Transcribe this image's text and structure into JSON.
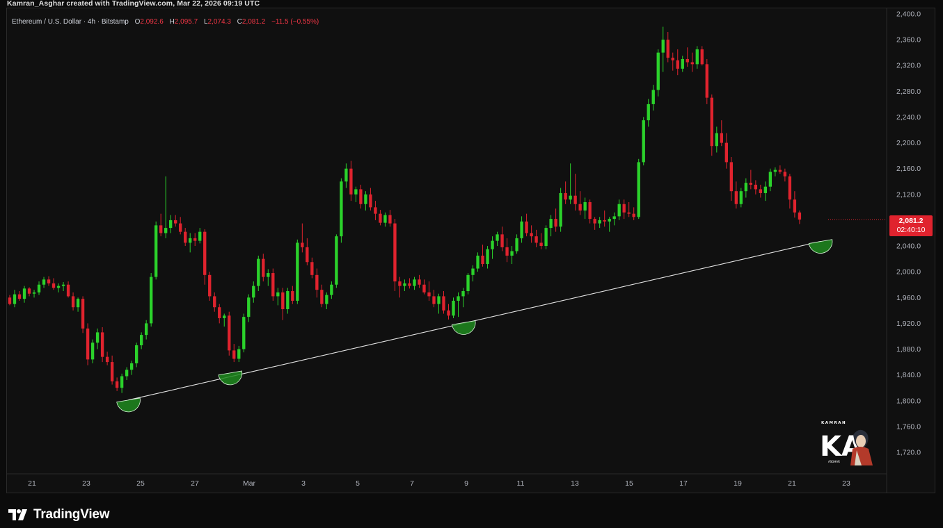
{
  "header": {
    "credit": "Kamran_Asghar created with TradingView.com, Mar 22, 2026 09:19 UTC"
  },
  "legend": {
    "symbol": "Ethereum / U.S. Dollar · 4h · Bitstamp",
    "open_label": "O",
    "open": "2,092.6",
    "high_label": "H",
    "high": "2,095.7",
    "low_label": "L",
    "low": "2,074.3",
    "close_label": "C",
    "close": "2,081.2",
    "change": "−11.5 (−0.55%)"
  },
  "price_tag": {
    "price": "2,081.2",
    "countdown": "02:40:10"
  },
  "footer": {
    "brand": "TradingView",
    "brand_icon": "tradingview-logo-icon"
  },
  "watermark": {
    "text": "KAMRAN",
    "initials": "KA",
    "subtext": "ASGHAR"
  },
  "colors": {
    "up": "#2bd22b",
    "down": "#e0232e",
    "background": "#101010",
    "trendline": "#e6e6e6",
    "highlight": "#1f8a1f"
  },
  "chart_data": {
    "type": "candlestick",
    "title": "",
    "ylim": [
      1690,
      2400
    ],
    "y_ticks": [
      "2,400.0",
      "2,360.0",
      "2,320.0",
      "2,280.0",
      "2,240.0",
      "2,200.0",
      "2,160.0",
      "2,120.0",
      "2,080.0",
      "2,040.0",
      "2,000.0",
      "1,960.0",
      "1,920.0",
      "1,880.0",
      "1,840.0",
      "1,800.0",
      "1,760.0",
      "1,720.0"
    ],
    "x_ticks": [
      "21",
      "23",
      "25",
      "27",
      "Mar",
      "3",
      "5",
      "7",
      "9",
      "11",
      "13",
      "15",
      "17",
      "19",
      "21",
      "23"
    ],
    "x_range_days": [
      -0.2,
      30.6
    ],
    "x_ticks_days": [
      0,
      2,
      4,
      6,
      8,
      10,
      12,
      14,
      16,
      18,
      20,
      22,
      24,
      26,
      28,
      30
    ],
    "trendline": [
      [
        3.55,
        1801
      ],
      [
        29.05,
        2047
      ]
    ],
    "support_touches": [
      [
        3.55,
        1801
      ],
      [
        7.3,
        1843
      ],
      [
        15.9,
        1921
      ],
      [
        29.05,
        2047
      ]
    ],
    "candles": [
      [
        1960,
        1964,
        1948,
        1950
      ],
      [
        1950,
        1972,
        1945,
        1965
      ],
      [
        1965,
        1970,
        1955,
        1958
      ],
      [
        1958,
        1978,
        1952,
        1974
      ],
      [
        1974,
        1976,
        1962,
        1966
      ],
      [
        1966,
        1972,
        1960,
        1968
      ],
      [
        1968,
        1985,
        1964,
        1980
      ],
      [
        1980,
        1992,
        1975,
        1988
      ],
      [
        1988,
        1993,
        1978,
        1982
      ],
      [
        1982,
        1990,
        1972,
        1975
      ],
      [
        1975,
        1982,
        1968,
        1978
      ],
      [
        1978,
        1984,
        1970,
        1980
      ],
      [
        1980,
        1985,
        1960,
        1962
      ],
      [
        1962,
        1968,
        1940,
        1945
      ],
      [
        1945,
        1960,
        1938,
        1958
      ],
      [
        1958,
        1962,
        1905,
        1912
      ],
      [
        1912,
        1920,
        1855,
        1864
      ],
      [
        1864,
        1895,
        1858,
        1890
      ],
      [
        1890,
        1912,
        1880,
        1906
      ],
      [
        1906,
        1914,
        1860,
        1868
      ],
      [
        1868,
        1876,
        1855,
        1860
      ],
      [
        1860,
        1870,
        1825,
        1830
      ],
      [
        1830,
        1836,
        1815,
        1820
      ],
      [
        1820,
        1842,
        1812,
        1838
      ],
      [
        1838,
        1852,
        1832,
        1848
      ],
      [
        1848,
        1862,
        1840,
        1858
      ],
      [
        1858,
        1890,
        1852,
        1886
      ],
      [
        1886,
        1906,
        1880,
        1902
      ],
      [
        1902,
        1925,
        1895,
        1920
      ],
      [
        1920,
        1998,
        1915,
        1992
      ],
      [
        1992,
        2078,
        1988,
        2072
      ],
      [
        2072,
        2090,
        2055,
        2060
      ],
      [
        2060,
        2148,
        2052,
        2068
      ],
      [
        2068,
        2088,
        2060,
        2080
      ],
      [
        2080,
        2088,
        2070,
        2075
      ],
      [
        2075,
        2085,
        2058,
        2062
      ],
      [
        2062,
        2068,
        2040,
        2045
      ],
      [
        2045,
        2060,
        2030,
        2052
      ],
      [
        2052,
        2060,
        2040,
        2048
      ],
      [
        2048,
        2068,
        2044,
        2062
      ],
      [
        2062,
        2066,
        1980,
        1995
      ],
      [
        1995,
        2000,
        1955,
        1962
      ],
      [
        1962,
        1968,
        1938,
        1945
      ],
      [
        1945,
        1950,
        1920,
        1928
      ],
      [
        1928,
        1935,
        1915,
        1932
      ],
      [
        1932,
        1938,
        1870,
        1878
      ],
      [
        1878,
        1888,
        1860,
        1865
      ],
      [
        1865,
        1885,
        1860,
        1880
      ],
      [
        1880,
        1935,
        1875,
        1930
      ],
      [
        1930,
        1965,
        1922,
        1960
      ],
      [
        1960,
        1985,
        1952,
        1978
      ],
      [
        1978,
        2025,
        1970,
        2020
      ],
      [
        2020,
        2028,
        1985,
        1992
      ],
      [
        1992,
        2004,
        1978,
        1998
      ],
      [
        1998,
        2005,
        1955,
        1962
      ],
      [
        1962,
        1975,
        1948,
        1968
      ],
      [
        1968,
        1975,
        1925,
        1942
      ],
      [
        1942,
        1975,
        1935,
        1970
      ],
      [
        1970,
        1978,
        1950,
        1955
      ],
      [
        1955,
        2050,
        1950,
        2045
      ],
      [
        2045,
        2075,
        2030,
        2038
      ],
      [
        2038,
        2052,
        2010,
        2015
      ],
      [
        2015,
        2022,
        1990,
        1995
      ],
      [
        1995,
        2005,
        1960,
        1972
      ],
      [
        1972,
        1980,
        1945,
        1950
      ],
      [
        1950,
        1968,
        1942,
        1964
      ],
      [
        1964,
        1985,
        1958,
        1980
      ],
      [
        1980,
        2058,
        1975,
        2055
      ],
      [
        2055,
        2145,
        2045,
        2140
      ],
      [
        2140,
        2168,
        2130,
        2160
      ],
      [
        2160,
        2172,
        2110,
        2120
      ],
      [
        2120,
        2132,
        2108,
        2128
      ],
      [
        2128,
        2135,
        2098,
        2105
      ],
      [
        2105,
        2125,
        2095,
        2120
      ],
      [
        2120,
        2130,
        2095,
        2100
      ],
      [
        2100,
        2110,
        2080,
        2090
      ],
      [
        2090,
        2096,
        2072,
        2076
      ],
      [
        2076,
        2092,
        2070,
        2088
      ],
      [
        2088,
        2096,
        2070,
        2075
      ],
      [
        2075,
        2082,
        1970,
        1985
      ],
      [
        1985,
        1992,
        1960,
        1978
      ],
      [
        1978,
        1988,
        1970,
        1982
      ],
      [
        1982,
        1990,
        1974,
        1978
      ],
      [
        1978,
        1992,
        1972,
        1988
      ],
      [
        1988,
        1995,
        1975,
        1980
      ],
      [
        1980,
        1988,
        1965,
        1968
      ],
      [
        1968,
        1985,
        1955,
        1962
      ],
      [
        1962,
        1972,
        1945,
        1950
      ],
      [
        1950,
        1966,
        1935,
        1962
      ],
      [
        1962,
        1970,
        1935,
        1940
      ],
      [
        1940,
        1950,
        1926,
        1932
      ],
      [
        1932,
        1960,
        1928,
        1955
      ],
      [
        1955,
        1968,
        1930,
        1962
      ],
      [
        1962,
        1975,
        1945,
        1970
      ],
      [
        1970,
        1998,
        1965,
        1995
      ],
      [
        1995,
        2010,
        1985,
        2005
      ],
      [
        2005,
        2030,
        2000,
        2025
      ],
      [
        2025,
        2042,
        2008,
        2012
      ],
      [
        2012,
        2040,
        2005,
        2035
      ],
      [
        2035,
        2055,
        2020,
        2048
      ],
      [
        2048,
        2062,
        2040,
        2058
      ],
      [
        2058,
        2070,
        2032,
        2038
      ],
      [
        2038,
        2052,
        2015,
        2025
      ],
      [
        2025,
        2040,
        2012,
        2032
      ],
      [
        2032,
        2058,
        2028,
        2052
      ],
      [
        2052,
        2086,
        2045,
        2078
      ],
      [
        2078,
        2090,
        2055,
        2060
      ],
      [
        2060,
        2072,
        2045,
        2055
      ],
      [
        2055,
        2065,
        2038,
        2045
      ],
      [
        2045,
        2060,
        2035,
        2040
      ],
      [
        2040,
        2072,
        2035,
        2068
      ],
      [
        2068,
        2088,
        2055,
        2082
      ],
      [
        2082,
        2098,
        2062,
        2070
      ],
      [
        2070,
        2130,
        2062,
        2122
      ],
      [
        2122,
        2140,
        2105,
        2112
      ],
      [
        2112,
        2168,
        2105,
        2118
      ],
      [
        2118,
        2152,
        2095,
        2105
      ],
      [
        2105,
        2125,
        2088,
        2095
      ],
      [
        2095,
        2115,
        2082,
        2108
      ],
      [
        2108,
        2112,
        2075,
        2082
      ],
      [
        2082,
        2085,
        2065,
        2075
      ],
      [
        2075,
        2085,
        2068,
        2080
      ],
      [
        2080,
        2095,
        2070,
        2078
      ],
      [
        2078,
        2085,
        2062,
        2082
      ],
      [
        2082,
        2092,
        2072,
        2086
      ],
      [
        2086,
        2112,
        2080,
        2105
      ],
      [
        2105,
        2112,
        2082,
        2092
      ],
      [
        2092,
        2108,
        2085,
        2090
      ],
      [
        2090,
        2100,
        2080,
        2085
      ],
      [
        2085,
        2175,
        2082,
        2170
      ],
      [
        2170,
        2240,
        2165,
        2235
      ],
      [
        2235,
        2268,
        2225,
        2260
      ],
      [
        2260,
        2290,
        2250,
        2282
      ],
      [
        2282,
        2345,
        2272,
        2340
      ],
      [
        2340,
        2380,
        2310,
        2360
      ],
      [
        2360,
        2372,
        2325,
        2332
      ],
      [
        2332,
        2340,
        2312,
        2328
      ],
      [
        2328,
        2345,
        2305,
        2315
      ],
      [
        2315,
        2335,
        2310,
        2330
      ],
      [
        2330,
        2348,
        2318,
        2325
      ],
      [
        2325,
        2340,
        2310,
        2322
      ],
      [
        2322,
        2350,
        2315,
        2345
      ],
      [
        2345,
        2350,
        2320,
        2322
      ],
      [
        2322,
        2330,
        2260,
        2270
      ],
      [
        2270,
        2275,
        2180,
        2195
      ],
      [
        2195,
        2225,
        2185,
        2215
      ],
      [
        2215,
        2235,
        2195,
        2200
      ],
      [
        2200,
        2215,
        2160,
        2170
      ],
      [
        2170,
        2178,
        2110,
        2125
      ],
      [
        2125,
        2140,
        2098,
        2105
      ],
      [
        2105,
        2130,
        2100,
        2125
      ],
      [
        2125,
        2145,
        2115,
        2138
      ],
      [
        2138,
        2158,
        2128,
        2135
      ],
      [
        2135,
        2142,
        2120,
        2128
      ],
      [
        2128,
        2135,
        2115,
        2122
      ],
      [
        2122,
        2140,
        2110,
        2132
      ],
      [
        2132,
        2160,
        2125,
        2155
      ],
      [
        2155,
        2162,
        2148,
        2158
      ],
      [
        2158,
        2165,
        2152,
        2155
      ],
      [
        2155,
        2160,
        2140,
        2148
      ],
      [
        2148,
        2152,
        2098,
        2112
      ],
      [
        2112,
        2125,
        2084,
        2092
      ],
      [
        2092,
        2095,
        2074,
        2081
      ]
    ]
  }
}
